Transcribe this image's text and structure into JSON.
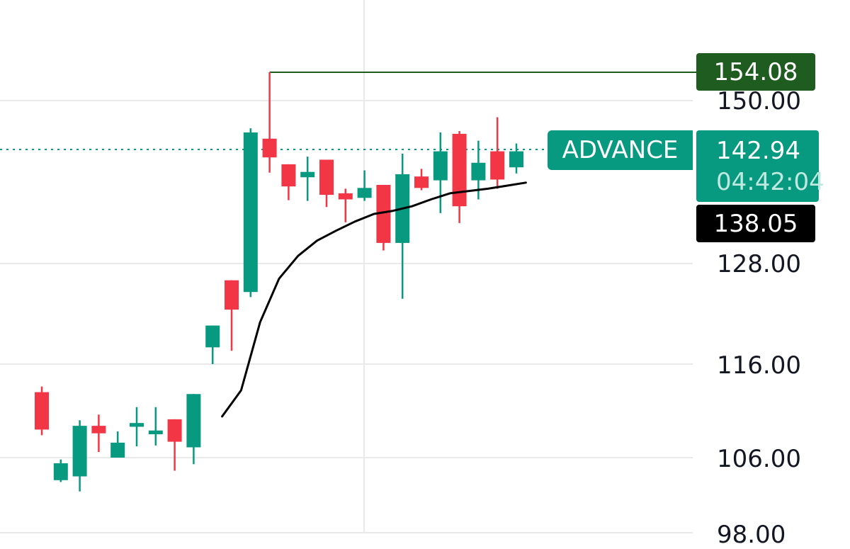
{
  "chart_data": {
    "type": "candlestick",
    "title": "",
    "xlabel": "",
    "ylabel": "",
    "y_ticks": [
      "150.00",
      "128.00",
      "116.00",
      "106.00",
      "98.00"
    ],
    "y_tick_values": [
      150,
      128,
      116,
      106,
      98
    ],
    "candles": [
      {
        "o": 113.0,
        "h": 113.6,
        "l": 108.4,
        "c": 109.0
      },
      {
        "o": 103.6,
        "h": 105.8,
        "l": 103.4,
        "c": 105.4
      },
      {
        "o": 104.0,
        "h": 110.0,
        "l": 102.4,
        "c": 109.4
      },
      {
        "o": 109.4,
        "h": 110.6,
        "l": 106.6,
        "c": 108.6
      },
      {
        "o": 106.0,
        "h": 108.8,
        "l": 106.0,
        "c": 107.6
      },
      {
        "o": 109.3,
        "h": 111.4,
        "l": 107.2,
        "c": 109.7
      },
      {
        "o": 108.5,
        "h": 111.4,
        "l": 107.3,
        "c": 108.9
      },
      {
        "o": 110.1,
        "h": 110.1,
        "l": 104.6,
        "c": 107.7
      },
      {
        "o": 107.1,
        "h": 112.8,
        "l": 105.3,
        "c": 112.8
      },
      {
        "o": 118.0,
        "h": 120.6,
        "l": 116.0,
        "c": 120.6
      },
      {
        "o": 126.0,
        "h": 126.0,
        "l": 117.6,
        "c": 122.5
      },
      {
        "o": 124.6,
        "h": 146.0,
        "l": 124.0,
        "c": 145.4
      },
      {
        "o": 144.5,
        "h": 154.08,
        "l": 139.9,
        "c": 141.9
      },
      {
        "o": 141.0,
        "h": 141.0,
        "l": 136.3,
        "c": 138.1
      },
      {
        "o": 139.3,
        "h": 142.0,
        "l": 136.2,
        "c": 140.0
      },
      {
        "o": 141.6,
        "h": 141.6,
        "l": 135.4,
        "c": 137.0
      },
      {
        "o": 137.2,
        "h": 137.8,
        "l": 133.4,
        "c": 136.4
      },
      {
        "o": 136.6,
        "h": 140.2,
        "l": 136.2,
        "c": 137.9
      },
      {
        "o": 138.3,
        "h": 138.3,
        "l": 129.7,
        "c": 130.7
      },
      {
        "o": 130.7,
        "h": 142.4,
        "l": 123.8,
        "c": 139.7
      },
      {
        "o": 139.4,
        "h": 140.4,
        "l": 137.6,
        "c": 137.9
      },
      {
        "o": 138.9,
        "h": 145.4,
        "l": 134.6,
        "c": 142.7
      },
      {
        "o": 145.2,
        "h": 145.6,
        "l": 133.3,
        "c": 135.5
      },
      {
        "o": 138.9,
        "h": 144.2,
        "l": 136.4,
        "c": 141.2
      },
      {
        "o": 142.7,
        "h": 147.6,
        "l": 137.8,
        "c": 139.0
      },
      {
        "o": 140.6,
        "h": 143.8,
        "l": 139.8,
        "c": 142.7
      }
    ],
    "moving_average": [
      {
        "i": 9.5,
        "v": 110.4
      },
      {
        "i": 10.5,
        "v": 113.2
      },
      {
        "i": 11.5,
        "v": 121.0
      },
      {
        "i": 12.5,
        "v": 126.2
      },
      {
        "i": 13.5,
        "v": 129.0
      },
      {
        "i": 14.5,
        "v": 131.0
      },
      {
        "i": 15.5,
        "v": 132.3
      },
      {
        "i": 16.5,
        "v": 133.5
      },
      {
        "i": 17.5,
        "v": 134.5
      },
      {
        "i": 18.5,
        "v": 134.9
      },
      {
        "i": 19.5,
        "v": 135.5
      },
      {
        "i": 20.5,
        "v": 136.4
      },
      {
        "i": 21.5,
        "v": 137.2
      },
      {
        "i": 22.5,
        "v": 137.5
      },
      {
        "i": 23.5,
        "v": 137.8
      },
      {
        "i": 24.5,
        "v": 138.2
      },
      {
        "i": 25.5,
        "v": 138.6
      }
    ],
    "high_marker": {
      "value": 154.08,
      "label": "154.08"
    },
    "current_price": {
      "value": 142.94,
      "label": "142.94",
      "countdown": "04:42:04",
      "symbol_label": "ADVANCE"
    },
    "ma_label": {
      "value": 138.05,
      "label": "138.05"
    },
    "colors": {
      "up": "#089981",
      "down": "#f23645",
      "ma": "#000000",
      "high_line": "#1e5c1f",
      "high_tag": "#1e5c1f",
      "grid": "#e9e9ea",
      "ma_tag": "#000000"
    }
  }
}
